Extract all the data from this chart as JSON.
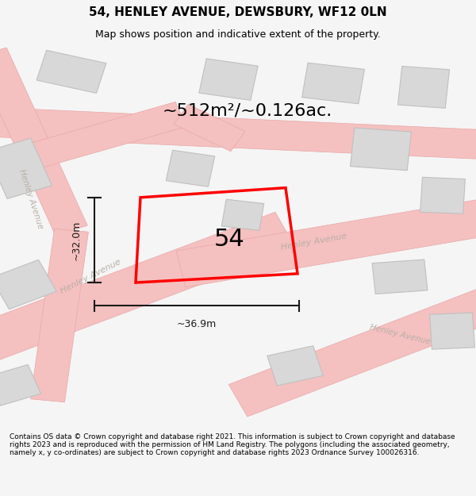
{
  "title_line1": "54, HENLEY AVENUE, DEWSBURY, WF12 0LN",
  "title_line2": "Map shows position and indicative extent of the property.",
  "area_label": "~512m²/~0.126ac.",
  "house_number": "54",
  "dim_height": "~32.0m",
  "dim_width": "~36.9m",
  "footer_text": "Contains OS data © Crown copyright and database right 2021. This information is subject to Crown copyright and database rights 2023 and is reproduced with the permission of HM Land Registry. The polygons (including the associated geometry, namely x, y co-ordinates) are subject to Crown copyright and database rights 2023 Ordnance Survey 100026316.",
  "bg_color": "#f5f5f5",
  "map_bg": "#efefef",
  "building_fill": "#d8d8d8",
  "building_edge": "#c0c0c0",
  "road_color": "#f5c0c0",
  "road_edge": "#e8a8a8",
  "property_color": "#ff0000",
  "dim_color": "#1a1a1a",
  "street_label_color": "#b8b0a8",
  "title_color": "#000000",
  "footer_color": "#000000",
  "area_label_color": "#000000"
}
